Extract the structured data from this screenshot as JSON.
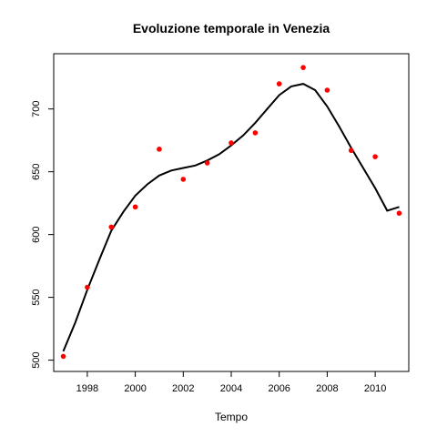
{
  "chart_data": {
    "type": "scatter",
    "title": "Evoluzione temporale in Venezia",
    "xlabel": "Tempo",
    "ylabel": "",
    "xlim": [
      1996.6,
      2011.4
    ],
    "ylim": [
      491,
      744
    ],
    "x_ticks": [
      1998,
      2000,
      2002,
      2004,
      2006,
      2008,
      2010
    ],
    "y_ticks": [
      500,
      550,
      600,
      650,
      700
    ],
    "grid": false,
    "legend": "none",
    "points": {
      "color": "#ff0000",
      "x": [
        1997,
        1998,
        1999,
        2000,
        2001,
        2002,
        2003,
        2004,
        2005,
        2006,
        2007,
        2008,
        2009,
        2010,
        2011
      ],
      "y": [
        503,
        558,
        606,
        622,
        668,
        644,
        657,
        673,
        681,
        720,
        733,
        715,
        667,
        662,
        617
      ]
    },
    "smooth_line": {
      "color": "#000000",
      "x": [
        1997,
        1997.5,
        1998,
        1998.5,
        1999,
        1999.5,
        2000,
        2000.5,
        2001,
        2001.5,
        2002,
        2002.5,
        2003,
        2003.5,
        2004,
        2004.5,
        2005,
        2005.5,
        2006,
        2006.5,
        2007,
        2007.5,
        2008,
        2008.5,
        2009,
        2009.5,
        2010,
        2010.5,
        2011
      ],
      "y": [
        507,
        530,
        556,
        580,
        603,
        618,
        631,
        640,
        647,
        651,
        653,
        655,
        659,
        664,
        671,
        679,
        689,
        700,
        711,
        718,
        720,
        715,
        702,
        686,
        669,
        653,
        637,
        619,
        622
      ]
    }
  }
}
